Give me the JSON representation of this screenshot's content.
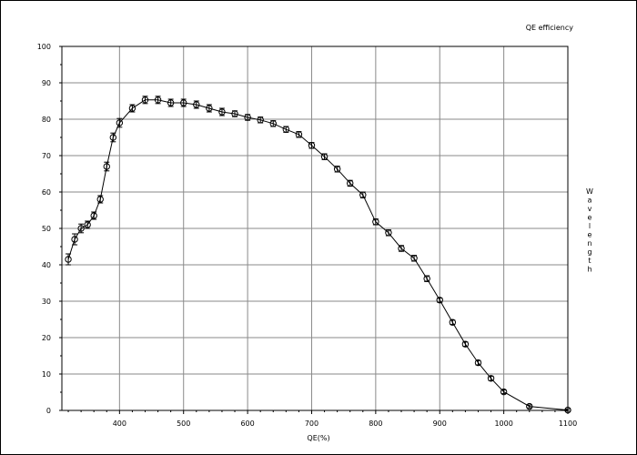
{
  "chart_data": {
    "type": "line",
    "title": "QE efficiency",
    "xlabel": "QE(%)",
    "ylabel": "Wavelength",
    "xlim": [
      310,
      1100
    ],
    "ylim": [
      0,
      100
    ],
    "xticks": [
      400,
      500,
      600,
      700,
      800,
      900,
      1000,
      1100
    ],
    "yticks": [
      0,
      10,
      20,
      30,
      40,
      50,
      60,
      70,
      80,
      90,
      100
    ],
    "grid": true,
    "markers": "circle-with-error-bars",
    "series": [
      {
        "x": [
          320,
          330,
          340,
          350,
          360,
          370,
          380,
          390,
          400,
          420,
          440,
          460,
          480,
          500,
          520,
          540,
          560,
          580,
          600,
          620,
          640,
          660,
          680,
          700,
          720,
          740,
          760,
          780,
          800,
          820,
          840,
          860,
          880,
          900,
          920,
          940,
          960,
          980,
          1000,
          1040,
          1100
        ],
        "y": [
          41.5,
          47.0,
          50.0,
          51.0,
          53.5,
          58.0,
          67.0,
          75.0,
          79.0,
          83.0,
          85.3,
          85.3,
          84.5,
          84.5,
          84.0,
          83.0,
          82.0,
          81.5,
          80.5,
          79.8,
          78.8,
          77.2,
          75.8,
          72.8,
          69.7,
          66.3,
          62.4,
          59.2,
          51.8,
          48.8,
          44.5,
          41.8,
          36.2,
          30.3,
          24.2,
          18.2,
          13.1,
          8.8,
          5.1,
          1.1,
          0.1
        ],
        "err": [
          1.5,
          1.5,
          1.2,
          1.0,
          1.0,
          1.0,
          1.2,
          1.2,
          1.2,
          1.0,
          1.0,
          1.0,
          1.0,
          1.0,
          1.0,
          1.0,
          1.0,
          0.8,
          0.8,
          0.8,
          0.8,
          0.8,
          0.8,
          0.8,
          0.8,
          0.8,
          0.8,
          0.8,
          0.8,
          0.8,
          0.8,
          0.8,
          0.8,
          0.6,
          0.6,
          0.6,
          0.6,
          0.6,
          0.5,
          0.4,
          0.3
        ]
      }
    ]
  }
}
